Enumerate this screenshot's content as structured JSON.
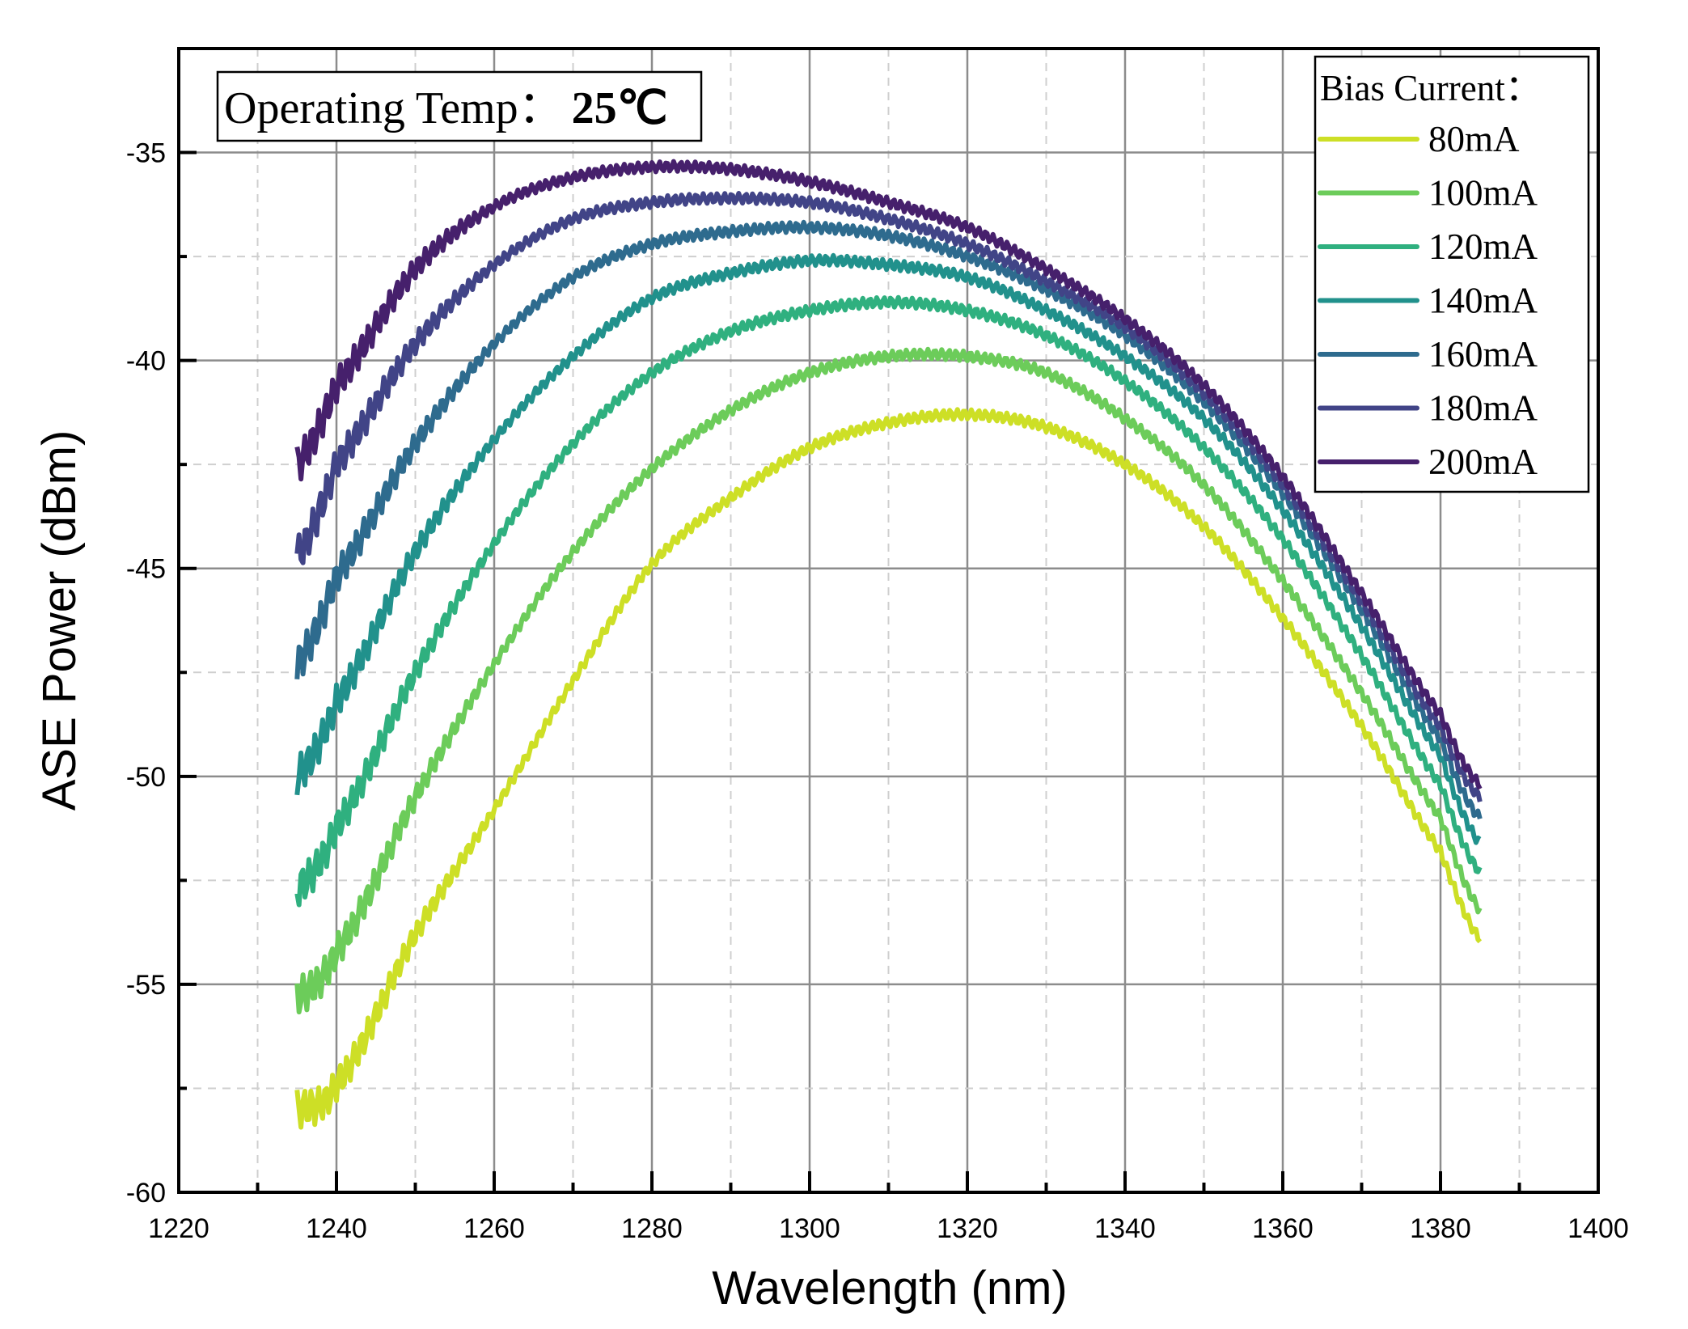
{
  "chart_data": {
    "type": "line",
    "xlabel": "Wavelength (nm)",
    "ylabel": "ASE Power (dBm)",
    "xlim": [
      1220,
      1400
    ],
    "ylim": [
      -60,
      -32.5
    ],
    "xticks": [
      1220,
      1240,
      1260,
      1280,
      1300,
      1320,
      1340,
      1360,
      1380,
      1400
    ],
    "yticks": [
      -60,
      -55,
      -50,
      -45,
      -40,
      -35
    ],
    "grid": true,
    "annotation": {
      "label": "Operating Temp：",
      "value": "25℃"
    },
    "legend": {
      "title": "Bias Current：",
      "position": "top-right"
    },
    "x": [
      1235,
      1240,
      1250,
      1260,
      1270,
      1280,
      1290,
      1300,
      1310,
      1320,
      1330,
      1340,
      1350,
      1360,
      1370,
      1380,
      1385
    ],
    "series": [
      {
        "name": "80mA",
        "color": "#cddf26",
        "values": [
          -58.0,
          -57.4,
          -53.8,
          -50.8,
          -47.7,
          -44.9,
          -43.3,
          -42.1,
          -41.5,
          -41.3,
          -41.6,
          -42.5,
          -44.0,
          -46.2,
          -48.8,
          -51.8,
          -53.9
        ]
      },
      {
        "name": "100mA",
        "color": "#6ccc5a",
        "values": [
          -55.3,
          -54.2,
          -50.5,
          -47.3,
          -44.6,
          -42.6,
          -41.2,
          -40.3,
          -39.9,
          -39.9,
          -40.3,
          -41.4,
          -43.0,
          -45.3,
          -48.0,
          -51.0,
          -53.2
        ]
      },
      {
        "name": "120mA",
        "color": "#2fb07f",
        "values": [
          -52.7,
          -51.2,
          -47.5,
          -44.4,
          -42.0,
          -40.3,
          -39.3,
          -38.8,
          -38.6,
          -38.8,
          -39.4,
          -40.5,
          -42.1,
          -44.3,
          -47.1,
          -50.2,
          -52.3
        ]
      },
      {
        "name": "140mA",
        "color": "#21918c",
        "values": [
          -50.0,
          -48.2,
          -44.6,
          -41.9,
          -39.9,
          -38.5,
          -37.9,
          -37.6,
          -37.7,
          -38.0,
          -38.8,
          -39.9,
          -41.4,
          -43.6,
          -46.4,
          -49.5,
          -51.6
        ]
      },
      {
        "name": "160mA",
        "color": "#2e6b8e",
        "values": [
          -47.3,
          -45.2,
          -42.0,
          -39.6,
          -38.0,
          -37.2,
          -36.9,
          -36.8,
          -37.0,
          -37.5,
          -38.3,
          -39.4,
          -41.0,
          -43.2,
          -46.0,
          -49.1,
          -51.0
        ]
      },
      {
        "name": "180mA",
        "color": "#414487",
        "values": [
          -44.7,
          -42.5,
          -39.6,
          -37.7,
          -36.6,
          -36.2,
          -36.1,
          -36.2,
          -36.6,
          -37.2,
          -38.1,
          -39.2,
          -40.8,
          -43.0,
          -45.8,
          -48.8,
          -50.5
        ]
      },
      {
        "name": "200mA",
        "color": "#46206c",
        "values": [
          -42.5,
          -40.6,
          -37.8,
          -36.3,
          -35.6,
          -35.35,
          -35.4,
          -35.7,
          -36.2,
          -36.8,
          -37.8,
          -39.0,
          -40.6,
          -42.8,
          -45.6,
          -48.5,
          -50.2
        ]
      }
    ]
  }
}
